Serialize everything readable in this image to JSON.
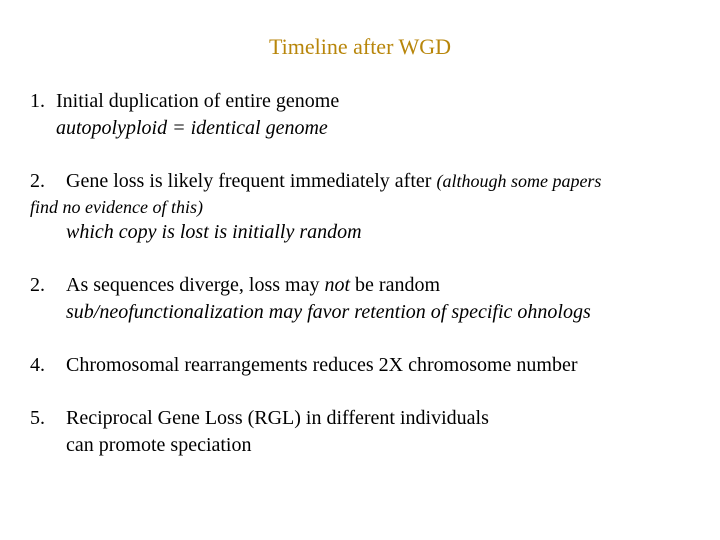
{
  "title": {
    "text": "Timeline after WGD",
    "color": "#b8860b",
    "fontsize": 22
  },
  "items": [
    {
      "number": "1.",
      "indent_after_num": false,
      "lines": [
        {
          "text": "Initial duplication of entire genome",
          "italic": false
        },
        {
          "text": "autopolyploid = identical genome",
          "italic": true
        }
      ]
    },
    {
      "number": "2.",
      "indent_after_num": true,
      "lines": [
        {
          "text": "Gene loss is likely frequent immediately after ",
          "italic": false,
          "paren_after": "(although some papers"
        },
        {
          "text": "find no evidence of this)",
          "paren": true,
          "dedent": true
        },
        {
          "text": "which copy is lost is initially random",
          "italic": true
        }
      ]
    },
    {
      "number": "2.",
      "indent_after_num": true,
      "lines": [
        {
          "pieces": [
            {
              "text": "As sequences diverge, loss may ",
              "italic": false
            },
            {
              "text": "not",
              "italic": true
            },
            {
              "text": " be random",
              "italic": false
            }
          ]
        },
        {
          "text": "sub/neofunctionalization may favor retention of specific ohnologs",
          "italic": true
        }
      ]
    },
    {
      "number": "4.",
      "indent_after_num": true,
      "lines": [
        {
          "text": "Chromosomal rearrangements reduces 2X chromosome number",
          "italic": false
        }
      ]
    },
    {
      "number": "5.",
      "indent_after_num": true,
      "lines": [
        {
          "text": "Reciprocal Gene Loss (RGL) in different individuals",
          "italic": false
        },
        {
          "text": "can promote speciation",
          "italic": false
        }
      ]
    }
  ],
  "colors": {
    "text": "#000000",
    "background": "#ffffff"
  }
}
